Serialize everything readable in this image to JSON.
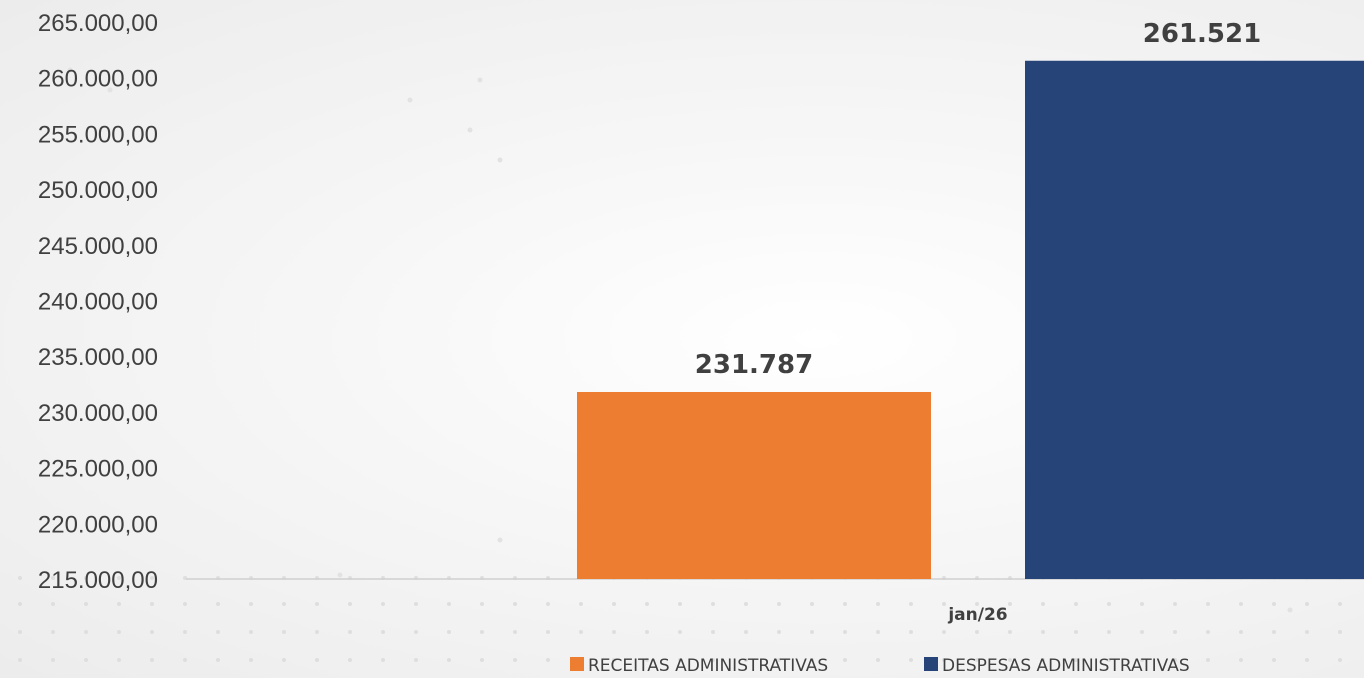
{
  "chart_data": {
    "type": "bar",
    "categories": [
      "jan/26"
    ],
    "series": [
      {
        "name": "RECEITAS ADMINISTRATIVAS",
        "values": [
          231787
        ],
        "color": "#ED7D31",
        "label": "231.787"
      },
      {
        "name": "DESPESAS ADMINISTRATIVAS",
        "values": [
          261521
        ],
        "color": "#264478",
        "label": "261.521"
      }
    ],
    "ylim": [
      215000,
      265000
    ],
    "yticks": [
      "265.000,00",
      "260.000,00",
      "255.000,00",
      "250.000,00",
      "245.000,00",
      "240.000,00",
      "235.000,00",
      "230.000,00",
      "225.000,00",
      "220.000,00",
      "215.000,00"
    ],
    "ytick_values": [
      265000,
      260000,
      255000,
      250000,
      245000,
      240000,
      235000,
      230000,
      225000,
      220000,
      215000
    ],
    "xlabel": "",
    "ylabel": "",
    "title": "",
    "grid": false,
    "legend_position": "bottom"
  }
}
